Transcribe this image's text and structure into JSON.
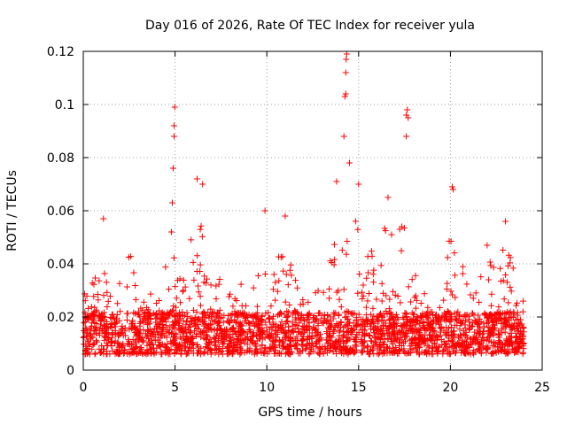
{
  "chart_data": {
    "type": "scatter",
    "title": "Day 016 of 2026, Rate Of TEC Index for receiver yula",
    "xlabel": "GPS time / hours",
    "ylabel": "ROTI / TECUs",
    "xlim": [
      0,
      25
    ],
    "ylim": [
      0,
      0.12
    ],
    "xticks": [
      0,
      5,
      10,
      15,
      20,
      25
    ],
    "xtick_labels": [
      "0",
      "5",
      "10",
      "15",
      "20",
      "25"
    ],
    "yticks": [
      0,
      0.02,
      0.04,
      0.06,
      0.08,
      0.1,
      0.12
    ],
    "ytick_labels": [
      "0",
      "0.02",
      "0.04",
      "0.06",
      "0.08",
      "0.1",
      "0.12"
    ],
    "grid": true,
    "marker": "+",
    "marker_color": "#ff0000",
    "series": [
      {
        "name": "ROTI",
        "x_range": [
          0,
          24
        ],
        "baseline": 0.014,
        "outliers": [
          {
            "x": 1.1,
            "y": 0.057
          },
          {
            "x": 4.8,
            "y": 0.052
          },
          {
            "x": 4.85,
            "y": 0.063
          },
          {
            "x": 4.9,
            "y": 0.076
          },
          {
            "x": 4.95,
            "y": 0.088
          },
          {
            "x": 4.95,
            "y": 0.092
          },
          {
            "x": 4.98,
            "y": 0.099
          },
          {
            "x": 6.2,
            "y": 0.072
          },
          {
            "x": 6.5,
            "y": 0.07
          },
          {
            "x": 9.9,
            "y": 0.06
          },
          {
            "x": 11.0,
            "y": 0.058
          },
          {
            "x": 13.8,
            "y": 0.071
          },
          {
            "x": 14.2,
            "y": 0.088
          },
          {
            "x": 14.25,
            "y": 0.103
          },
          {
            "x": 14.3,
            "y": 0.104
          },
          {
            "x": 14.3,
            "y": 0.112
          },
          {
            "x": 14.32,
            "y": 0.117
          },
          {
            "x": 14.35,
            "y": 0.119
          },
          {
            "x": 14.5,
            "y": 0.078
          },
          {
            "x": 15.0,
            "y": 0.07
          },
          {
            "x": 16.6,
            "y": 0.065
          },
          {
            "x": 17.6,
            "y": 0.088
          },
          {
            "x": 17.6,
            "y": 0.096
          },
          {
            "x": 17.65,
            "y": 0.098
          },
          {
            "x": 17.7,
            "y": 0.095
          },
          {
            "x": 20.1,
            "y": 0.069
          },
          {
            "x": 20.15,
            "y": 0.068
          },
          {
            "x": 22.0,
            "y": 0.047
          },
          {
            "x": 23.0,
            "y": 0.056
          }
        ]
      }
    ]
  }
}
